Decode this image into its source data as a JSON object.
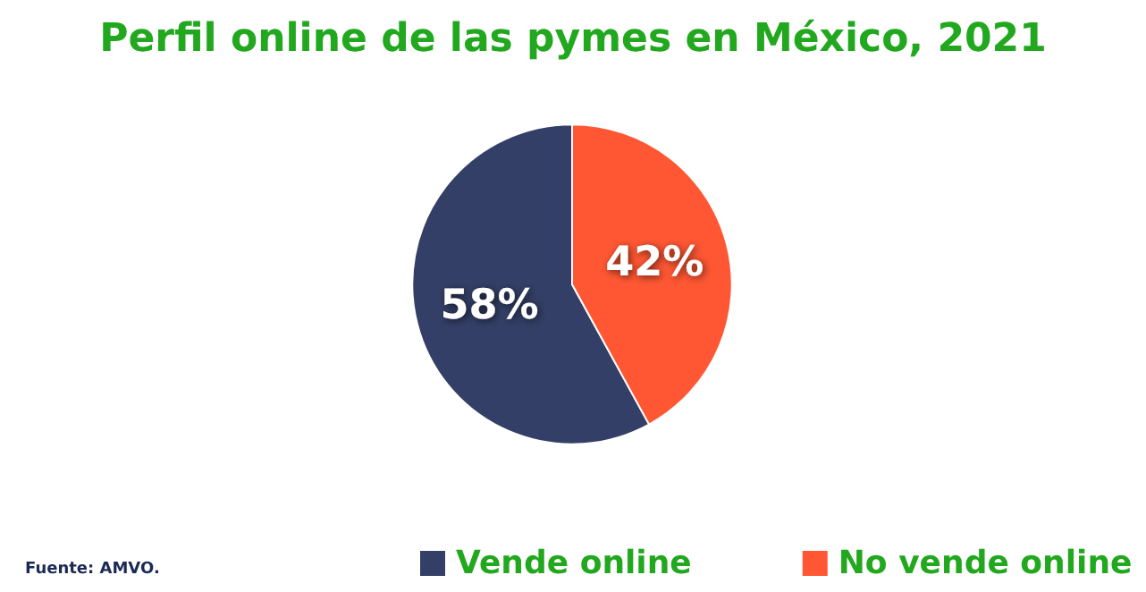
{
  "chart_data": {
    "type": "pie",
    "title": "Perfil online de las pymes en México, 2021",
    "categories": [
      "Vende online",
      "No vende online"
    ],
    "values": [
      58,
      42
    ],
    "colors": [
      "#333f66",
      "#ff5733"
    ],
    "value_labels": [
      "58%",
      "42%"
    ],
    "legend": "bottom",
    "annotations": [
      "Fuente: AMVO."
    ]
  }
}
